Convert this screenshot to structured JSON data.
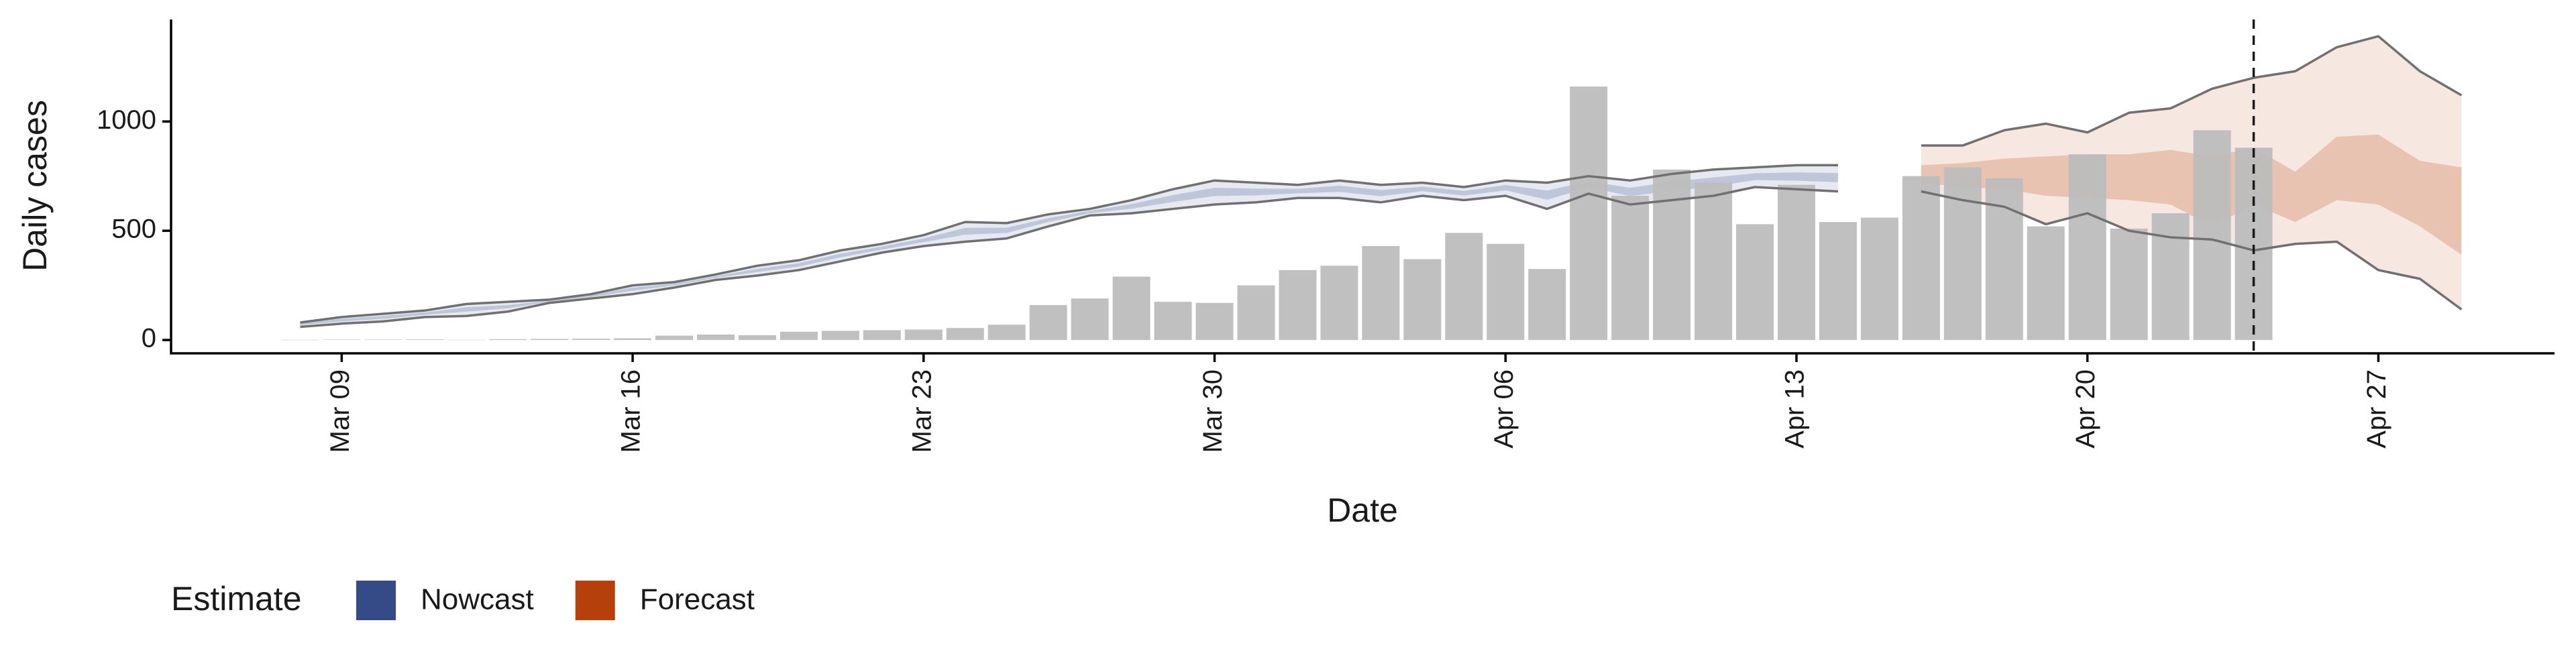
{
  "chart_data": {
    "type": "bar-band",
    "x_label": "Date",
    "y_label": "Daily cases",
    "legend_title": "Estimate",
    "categories": [
      null,
      "Mar 09",
      null,
      null,
      null,
      null,
      null,
      null,
      "Mar 16",
      null,
      null,
      null,
      null,
      null,
      null,
      "Mar 23",
      null,
      null,
      null,
      null,
      null,
      null,
      "Mar 30",
      null,
      null,
      null,
      null,
      null,
      null,
      "Apr 06",
      null,
      null,
      null,
      null,
      null,
      null,
      "Apr 13",
      null,
      null,
      null,
      null,
      null,
      null,
      "Apr 20",
      null,
      null,
      null,
      null,
      null,
      null,
      "Apr 27",
      null,
      null
    ],
    "ylim": [
      -61,
      1467
    ],
    "yticks": [
      0,
      500,
      1000
    ],
    "vline_at": 47,
    "bars": {
      "color": "#bdbdbd",
      "values": [
        1,
        2,
        2,
        3,
        1,
        4,
        5,
        6,
        8,
        20,
        25,
        22,
        38,
        42,
        45,
        48,
        55,
        70,
        160,
        190,
        290,
        175,
        170,
        250,
        320,
        340,
        430,
        370,
        490,
        440,
        325,
        1160,
        660,
        780,
        720,
        530,
        710,
        540,
        560,
        750,
        790,
        740,
        520,
        850,
        510,
        580,
        960,
        880,
        null,
        null,
        null,
        null,
        null
      ]
    },
    "bounds": {
      "color": "#707070",
      "upper": [
        80,
        105,
        120,
        135,
        165,
        175,
        185,
        210,
        250,
        265,
        300,
        340,
        365,
        410,
        440,
        480,
        540,
        535,
        575,
        600,
        640,
        690,
        730,
        720,
        710,
        730,
        710,
        720,
        700,
        730,
        720,
        750,
        730,
        760,
        780,
        790,
        800,
        800,
        null,
        890,
        890,
        960,
        990,
        950,
        1040,
        1060,
        1150,
        1200,
        1230,
        1340,
        1390,
        1230,
        1120
      ],
      "lower": [
        60,
        75,
        85,
        105,
        110,
        130,
        170,
        190,
        210,
        240,
        275,
        295,
        320,
        360,
        400,
        430,
        450,
        465,
        520,
        570,
        580,
        600,
        620,
        630,
        650,
        650,
        630,
        660,
        640,
        660,
        600,
        670,
        620,
        640,
        660,
        700,
        690,
        680,
        null,
        680,
        640,
        610,
        530,
        580,
        500,
        470,
        460,
        410,
        440,
        450,
        320,
        280,
        140
      ]
    },
    "series": [
      {
        "name": "Nowcast",
        "color": "#344b87",
        "lower": [
          68,
          85,
          97,
          115,
          130,
          145,
          175,
          197,
          225,
          250,
          284,
          311,
          336,
          378,
          414,
          448,
          482,
          490,
          540,
          580,
          601,
          632,
          659,
          662,
          671,
          678,
          658,
          681,
          661,
          685,
          642,
          698,
          659,
          682,
          702,
          732,
          729,
          722,
          null,
          null,
          null,
          null,
          null,
          null,
          null,
          null,
          null,
          null,
          null,
          null,
          null,
          null,
          null
        ],
        "upper": [
          75,
          97,
          110,
          126,
          150,
          160,
          180,
          205,
          240,
          258,
          292,
          326,
          352,
          395,
          428,
          465,
          513,
          514,
          558,
          591,
          622,
          663,
          697,
          693,
          692,
          706,
          686,
          702,
          682,
          709,
          684,
          726,
          697,
          724,
          744,
          763,
          767,
          764,
          null,
          null,
          null,
          null,
          null,
          null,
          null,
          null,
          null,
          null,
          null,
          null,
          null,
          null,
          null
        ]
      },
      {
        "name": "Forecast",
        "color": "#b5400c",
        "lower": [
          null,
          null,
          null,
          null,
          null,
          null,
          null,
          null,
          null,
          null,
          null,
          null,
          null,
          null,
          null,
          null,
          null,
          null,
          null,
          null,
          null,
          null,
          null,
          null,
          null,
          null,
          null,
          null,
          null,
          null,
          null,
          null,
          null,
          null,
          null,
          null,
          null,
          null,
          null,
          720,
          700,
          690,
          660,
          650,
          640,
          620,
          520,
          620,
          540,
          640,
          620,
          520,
          390
        ],
        "upper": [
          null,
          null,
          null,
          null,
          null,
          null,
          null,
          null,
          null,
          null,
          null,
          null,
          null,
          null,
          null,
          null,
          null,
          null,
          null,
          null,
          null,
          null,
          null,
          null,
          null,
          null,
          null,
          null,
          null,
          null,
          null,
          null,
          null,
          null,
          null,
          null,
          null,
          null,
          null,
          800,
          810,
          830,
          840,
          850,
          850,
          870,
          840,
          880,
          770,
          930,
          940,
          820,
          790
        ]
      }
    ]
  }
}
